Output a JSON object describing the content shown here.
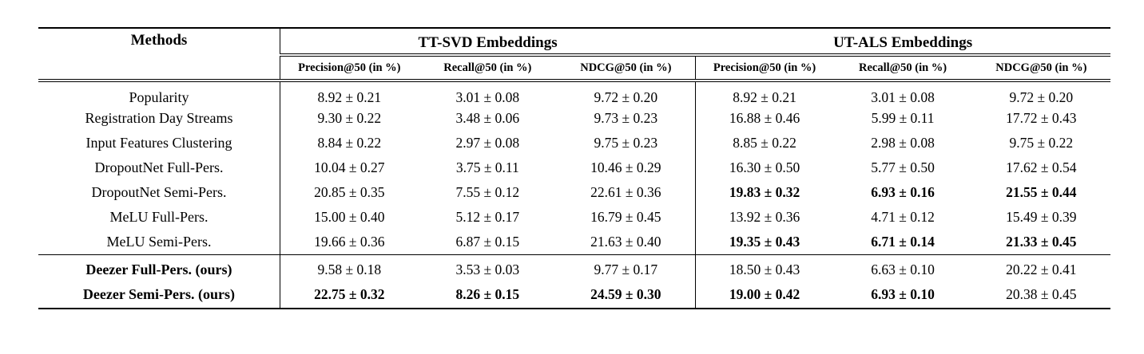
{
  "page": {
    "background": "#ffffff",
    "text_color": "#000000"
  },
  "table": {
    "header": {
      "methods_label": "Methods",
      "groups": [
        {
          "label": "TT-SVD Embeddings",
          "metrics": [
            "Precision@50 (in %)",
            "Recall@50 (in %)",
            "NDCG@50 (in %)"
          ]
        },
        {
          "label": "UT-ALS Embeddings",
          "metrics": [
            "Precision@50 (in %)",
            "Recall@50 (in %)",
            "NDCG@50 (in %)"
          ]
        }
      ]
    },
    "rows": [
      {
        "method": "Popularity",
        "bold_method": false,
        "cells": [
          "8.92 ± 0.21",
          "3.01 ± 0.08",
          "9.72 ± 0.20",
          "8.92 ± 0.21",
          "3.01 ± 0.08",
          "9.72 ± 0.20"
        ],
        "bold_cells": []
      },
      {
        "method": "Registration Day Streams",
        "bold_method": false,
        "cells": [
          "9.30 ± 0.22",
          "3.48 ± 0.06",
          "9.73 ± 0.23",
          "16.88 ± 0.46",
          "5.99 ± 0.11",
          "17.72 ± 0.43"
        ],
        "bold_cells": []
      },
      {
        "method": "Input Features Clustering",
        "bold_method": false,
        "cells": [
          "8.84 ± 0.22",
          "2.97 ± 0.08",
          "9.75 ± 0.23",
          "8.85 ± 0.22",
          "2.98 ± 0.08",
          "9.75 ± 0.22"
        ],
        "bold_cells": []
      },
      {
        "method": "DropoutNet Full-Pers.",
        "bold_method": false,
        "cells": [
          "10.04 ± 0.27",
          "3.75 ± 0.11",
          "10.46 ± 0.29",
          "16.30 ± 0.50",
          "5.77 ± 0.50",
          "17.62 ± 0.54"
        ],
        "bold_cells": []
      },
      {
        "method": "DropoutNet Semi-Pers.",
        "bold_method": false,
        "cells": [
          "20.85 ± 0.35",
          "7.55 ± 0.12",
          "22.61 ± 0.36",
          "19.83 ± 0.32",
          "6.93 ± 0.16",
          "21.55 ± 0.44"
        ],
        "bold_cells": [
          3,
          4,
          5
        ]
      },
      {
        "method": "MeLU Full-Pers.",
        "bold_method": false,
        "cells": [
          "15.00 ± 0.40",
          "5.12 ± 0.17",
          "16.79 ± 0.45",
          "13.92 ± 0.36",
          "4.71 ± 0.12",
          "15.49 ± 0.39"
        ],
        "bold_cells": []
      },
      {
        "method": "MeLU Semi-Pers.",
        "bold_method": false,
        "cells": [
          "19.66 ± 0.36",
          "6.87 ± 0.15",
          "21.63 ± 0.40",
          "19.35 ± 0.43",
          "6.71 ± 0.14",
          "21.33 ± 0.45"
        ],
        "bold_cells": [
          3,
          4,
          5
        ]
      }
    ],
    "ours_rows": [
      {
        "method": "Deezer Full-Pers. (ours)",
        "bold_method": true,
        "cells": [
          "9.58 ± 0.18",
          "3.53 ± 0.03",
          "9.77 ± 0.17",
          "18.50 ± 0.43",
          "6.63 ± 0.10",
          "20.22 ± 0.41"
        ],
        "bold_cells": []
      },
      {
        "method": "Deezer Semi-Pers. (ours)",
        "bold_method": true,
        "cells": [
          "22.75 ± 0.32",
          "8.26 ± 0.15",
          "24.59 ± 0.30",
          "19.00 ± 0.42",
          "6.93 ± 0.10",
          "20.38 ± 0.45"
        ],
        "bold_cells": [
          0,
          1,
          2,
          3,
          4
        ]
      }
    ]
  }
}
